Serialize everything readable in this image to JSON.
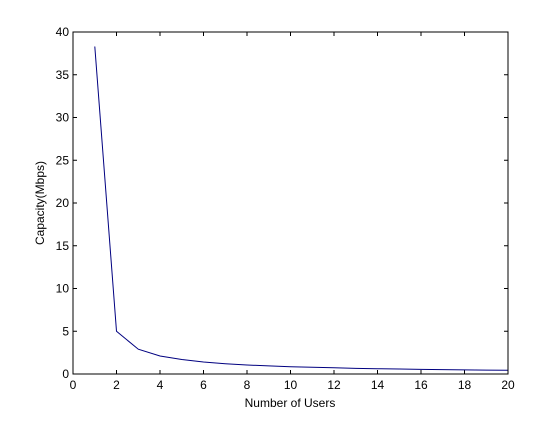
{
  "chart_data": {
    "type": "line",
    "title": "",
    "xlabel": "Number of Users",
    "ylabel": "Capacity(Mbps)",
    "xlim": [
      0,
      20
    ],
    "ylim": [
      0,
      40
    ],
    "x_ticks": [
      0,
      2,
      4,
      6,
      8,
      10,
      12,
      14,
      16,
      18,
      20
    ],
    "y_ticks": [
      0,
      5,
      10,
      15,
      20,
      25,
      30,
      35,
      40
    ],
    "grid": false,
    "legend": "none",
    "series": [
      {
        "color": "#000080",
        "x": [
          1,
          2,
          3,
          4,
          5,
          6,
          7,
          8,
          9,
          10,
          11,
          12,
          13,
          14,
          15,
          16,
          17,
          18,
          19,
          20
        ],
        "y": [
          38.3,
          5.0,
          2.9,
          2.1,
          1.7,
          1.4,
          1.2,
          1.05,
          0.95,
          0.85,
          0.78,
          0.72,
          0.66,
          0.62,
          0.58,
          0.54,
          0.51,
          0.48,
          0.46,
          0.44
        ]
      }
    ]
  }
}
